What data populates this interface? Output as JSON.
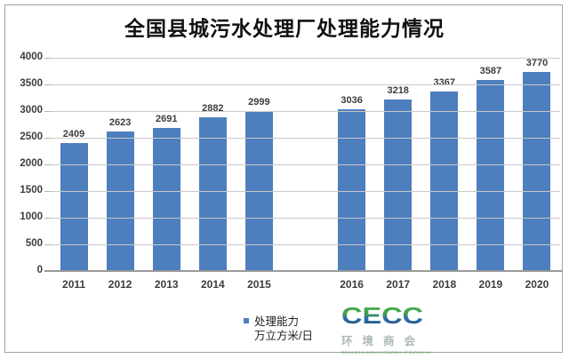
{
  "window": {
    "background": "#ffffff",
    "frame_border_color": "#a2a2a2"
  },
  "chart_data": {
    "type": "bar",
    "title": "全国县城污水处理厂处理能力情况",
    "categories": [
      "2011",
      "2012",
      "2013",
      "2014",
      "2015",
      "",
      "2016",
      "2017",
      "2018",
      "2019",
      "2020"
    ],
    "values": [
      2409,
      2623,
      2691,
      2882,
      2999,
      null,
      3036,
      3218,
      3367,
      3587,
      3770
    ],
    "series_name": "处理能力",
    "unit": "万立方米/日",
    "xlabel": "",
    "ylabel": "",
    "ylim": [
      0,
      4000
    ],
    "yticks": [
      4000,
      3500,
      3000,
      2500,
      2000,
      1500,
      1000,
      500,
      0
    ],
    "grid": true,
    "gridline_color": "#c9c9c9",
    "axis_color": "#9a9a9a",
    "bar_color": "#4d7ebe",
    "tick_label_color": "#3d3d3d",
    "legend_position": "bottom-center"
  },
  "legend": {
    "line1": "处理能力",
    "line2": "万立方米/日"
  },
  "logo": {
    "text": "CECC",
    "subtitle": "环境商会",
    "caption": "China Environment Chamber of Commerce",
    "green": "#55b94a",
    "blue": "#1f4f86"
  }
}
